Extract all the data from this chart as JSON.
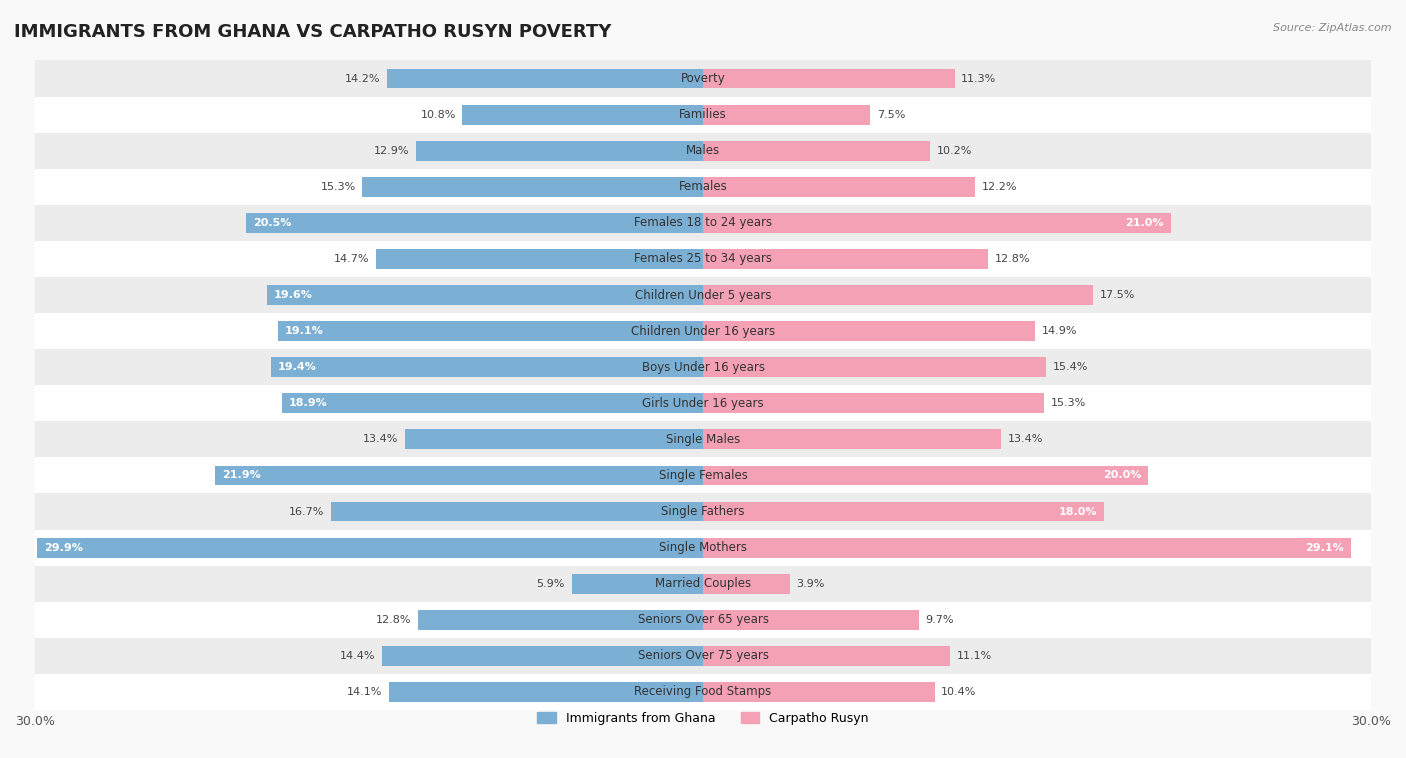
{
  "title": "IMMIGRANTS FROM GHANA VS CARPATHO RUSYN POVERTY",
  "source": "Source: ZipAtlas.com",
  "categories": [
    "Poverty",
    "Families",
    "Males",
    "Females",
    "Females 18 to 24 years",
    "Females 25 to 34 years",
    "Children Under 5 years",
    "Children Under 16 years",
    "Boys Under 16 years",
    "Girls Under 16 years",
    "Single Males",
    "Single Females",
    "Single Fathers",
    "Single Mothers",
    "Married Couples",
    "Seniors Over 65 years",
    "Seniors Over 75 years",
    "Receiving Food Stamps"
  ],
  "ghana_values": [
    14.2,
    10.8,
    12.9,
    15.3,
    20.5,
    14.7,
    19.6,
    19.1,
    19.4,
    18.9,
    13.4,
    21.9,
    16.7,
    29.9,
    5.9,
    12.8,
    14.4,
    14.1
  ],
  "rusyn_values": [
    11.3,
    7.5,
    10.2,
    12.2,
    21.0,
    12.8,
    17.5,
    14.9,
    15.4,
    15.3,
    13.4,
    20.0,
    18.0,
    29.1,
    3.9,
    9.7,
    11.1,
    10.4
  ],
  "ghana_color": "#7bafd4",
  "rusyn_color": "#f4a0b5",
  "ghana_label": "Immigrants from Ghana",
  "rusyn_label": "Carpatho Rusyn",
  "axis_max": 30.0,
  "background_color": "#f9f9f9",
  "row_alt_color": "#ffffff",
  "row_base_color": "#ececec",
  "bar_height": 0.55,
  "title_fontsize": 13,
  "label_fontsize": 8.5,
  "value_fontsize": 8.0,
  "legend_fontsize": 9
}
